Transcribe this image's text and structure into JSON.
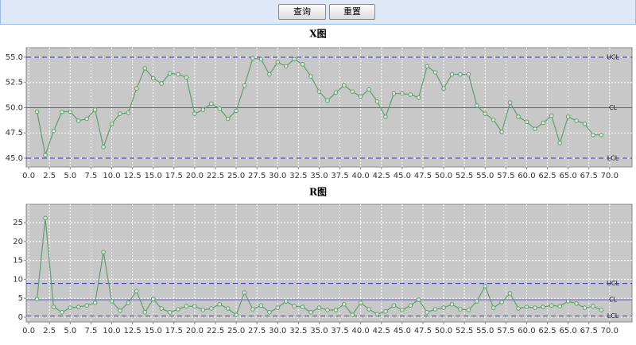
{
  "toolbar": {
    "buttons": [
      "查询",
      "重置"
    ]
  },
  "chart_data": [
    {
      "type": "line",
      "title": "X图",
      "color": "#5f9f70",
      "grid": true,
      "x": [
        1,
        2,
        3,
        4,
        5,
        6,
        7,
        8,
        9,
        10,
        11,
        12,
        13,
        14,
        15,
        16,
        17,
        18,
        19,
        20,
        21,
        22,
        23,
        24,
        25,
        26,
        27,
        28,
        29,
        30,
        31,
        32,
        33,
        34,
        35,
        36,
        37,
        38,
        39,
        40,
        41,
        42,
        43,
        44,
        45,
        46,
        47,
        48,
        49,
        50,
        51,
        52,
        53,
        54,
        55,
        56,
        57,
        58,
        59,
        60,
        61,
        62,
        63,
        64,
        65,
        66,
        67,
        68,
        69
      ],
      "values": [
        49.6,
        45.3,
        47.7,
        49.6,
        49.6,
        48.7,
        48.9,
        49.8,
        46.1,
        48.4,
        49.4,
        49.5,
        51.9,
        53.9,
        52.9,
        52.4,
        53.4,
        53.3,
        53.0,
        49.4,
        49.8,
        50.4,
        49.9,
        48.9,
        49.7,
        52.2,
        54.9,
        54.8,
        53.3,
        54.5,
        54.1,
        54.8,
        54.3,
        53.1,
        51.6,
        50.7,
        51.5,
        52.2,
        51.6,
        51.1,
        51.8,
        50.6,
        49.1,
        51.4,
        51.4,
        51.3,
        51.0,
        54.1,
        53.5,
        51.9,
        53.3,
        53.3,
        53.3,
        50.2,
        49.4,
        48.8,
        47.6,
        50.5,
        49.1,
        48.6,
        47.9,
        48.5,
        49.2,
        46.5,
        49.1,
        48.7,
        48.4,
        47.3,
        47.3
      ],
      "xlim": [
        -0.3,
        72.7
      ],
      "xticks": [
        {
          "value": 0,
          "label": "0.0"
        },
        2.5,
        {
          "value": 5,
          "label": "5.0"
        },
        7.5,
        {
          "value": 10,
          "label": "10.0"
        },
        12.5,
        {
          "value": 15,
          "label": "15.0"
        },
        17.5,
        {
          "value": 20,
          "label": "20.0"
        },
        22.5,
        {
          "value": 25,
          "label": "25.0"
        },
        27.5,
        {
          "value": 30,
          "label": "30.0"
        },
        32.5,
        {
          "value": 35,
          "label": "35.0"
        },
        37.5,
        {
          "value": 40,
          "label": "40.0"
        },
        42.5,
        {
          "value": 45,
          "label": "45.0"
        },
        47.5,
        {
          "value": 50,
          "label": "50.0"
        },
        52.5,
        {
          "value": 55,
          "label": "55.0"
        },
        57.5,
        {
          "value": 60,
          "label": "60.0"
        },
        62.5,
        {
          "value": 65,
          "label": "65.0"
        },
        67.5,
        {
          "value": 70,
          "label": "70.0"
        }
      ],
      "ylim": [
        44.13,
        55.94
      ],
      "yticks": [
        {
          "value": 45,
          "label": "45.0"
        },
        47.5,
        {
          "value": 50,
          "label": "50.0"
        },
        52.5,
        {
          "value": 55,
          "label": "55.0"
        }
      ],
      "control_lines": [
        {
          "label": "UCL",
          "value": 55,
          "style": "dashed",
          "color": "#3333cc"
        },
        {
          "label": "CL",
          "value": 50,
          "style": "solid",
          "color": "#5555dd"
        },
        {
          "label": "LCL",
          "value": 45,
          "style": "dashed",
          "color": "#3333cc"
        }
      ]
    },
    {
      "type": "line",
      "title": "R图",
      "color": "#5f9f70",
      "grid": true,
      "x": [
        1,
        2,
        3,
        4,
        5,
        6,
        7,
        8,
        9,
        10,
        11,
        12,
        13,
        14,
        15,
        16,
        17,
        18,
        19,
        20,
        21,
        22,
        23,
        24,
        25,
        26,
        27,
        28,
        29,
        30,
        31,
        32,
        33,
        34,
        35,
        36,
        37,
        38,
        39,
        40,
        41,
        42,
        43,
        44,
        45,
        46,
        47,
        48,
        49,
        50,
        51,
        52,
        53,
        54,
        55,
        56,
        57,
        58,
        59,
        60,
        61,
        62,
        63,
        64,
        65,
        66,
        67,
        68,
        69
      ],
      "values": [
        4.8,
        26.2,
        2.7,
        1.3,
        2.5,
        2.7,
        3.1,
        3.8,
        17.2,
        4.2,
        1.7,
        3.8,
        6.9,
        1.3,
        4.8,
        2.3,
        1.3,
        2.1,
        2.9,
        2.9,
        1.9,
        2.3,
        3.4,
        2.3,
        0.6,
        6.5,
        2.1,
        3.1,
        1.3,
        2.5,
        4.2,
        2.9,
        2.7,
        1.3,
        2.5,
        1.9,
        1.9,
        3.4,
        0.6,
        3.8,
        2.1,
        0.8,
        1.5,
        3.1,
        1.9,
        3.1,
        4.6,
        1.3,
        2.1,
        2.5,
        3.4,
        2.1,
        1.9,
        4.2,
        8.2,
        2.5,
        4.0,
        6.3,
        2.3,
        2.7,
        2.5,
        2.7,
        3.1,
        2.9,
        4.2,
        3.6,
        2.5,
        2.9,
        1.9
      ],
      "xlim": [
        -0.3,
        72.7
      ],
      "xticks": [
        {
          "value": 0,
          "label": "0.0"
        },
        2.5,
        {
          "value": 5,
          "label": "5.0"
        },
        7.5,
        {
          "value": 10,
          "label": "10.0"
        },
        12.5,
        {
          "value": 15,
          "label": "15.0"
        },
        17.5,
        {
          "value": 20,
          "label": "20.0"
        },
        22.5,
        {
          "value": 25,
          "label": "25.0"
        },
        27.5,
        {
          "value": 30,
          "label": "30.0"
        },
        32.5,
        {
          "value": 35,
          "label": "35.0"
        },
        37.5,
        {
          "value": 40,
          "label": "40.0"
        },
        42.5,
        {
          "value": 45,
          "label": "45.0"
        },
        47.5,
        {
          "value": 50,
          "label": "50.0"
        },
        52.5,
        {
          "value": 55,
          "label": "55.0"
        },
        57.5,
        {
          "value": 60,
          "label": "60.0"
        },
        62.5,
        {
          "value": 65,
          "label": "65.0"
        },
        67.5,
        {
          "value": 70,
          "label": "70.0"
        }
      ],
      "ylim": [
        -1.26,
        29.83
      ],
      "yticks": [
        0,
        5,
        10,
        15,
        20,
        25
      ],
      "control_lines": [
        {
          "label": "UCL",
          "value": 8.9,
          "style": "dashed",
          "color": "#3333cc"
        },
        {
          "label": "CL",
          "value": 4.6,
          "style": "solid",
          "color": "#5555dd"
        },
        {
          "label": "LCL",
          "value": 0.3,
          "style": "dashed",
          "color": "#3333cc"
        }
      ]
    }
  ]
}
